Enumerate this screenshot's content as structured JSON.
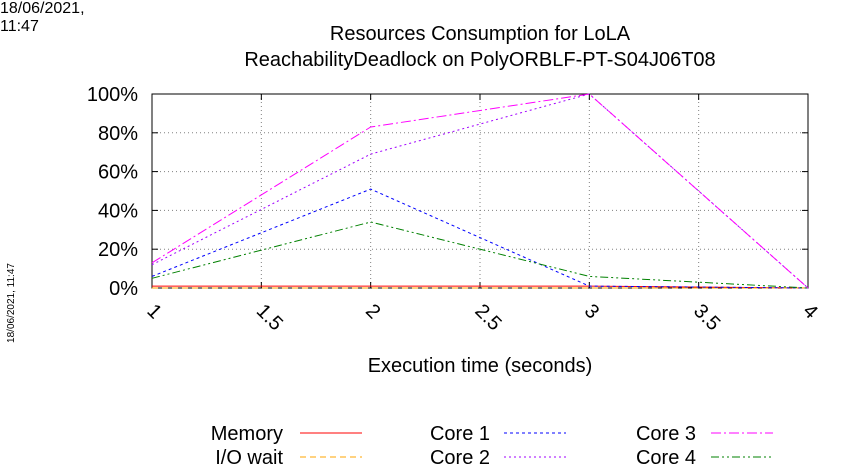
{
  "timestamp": "18/06/2021, 11:47",
  "chart_data": {
    "type": "line",
    "title": "Resources Consumption for LoLA",
    "subtitle": "ReachabilityDeadlock on PolyORBLF-PT-S04J06T08",
    "xlabel": "Execution time (seconds)",
    "ylabel": "",
    "xlim": [
      1,
      4
    ],
    "ylim": [
      0,
      100
    ],
    "x_ticks": [
      "1",
      "1.5",
      "2",
      "2.5",
      "3",
      "3.5",
      "4"
    ],
    "y_ticks": [
      "0%",
      "20%",
      "40%",
      "60%",
      "80%",
      "100%"
    ],
    "grid": true,
    "legend_position": "bottom",
    "x": [
      1,
      2,
      3,
      4
    ],
    "series": [
      {
        "name": "Memory",
        "color": "#ff0000",
        "dash": "solid",
        "values": [
          1,
          1,
          1,
          0
        ]
      },
      {
        "name": "I/O wait",
        "color": "#ffa500",
        "dash": "dashed",
        "values": [
          0,
          0,
          0,
          0
        ]
      },
      {
        "name": "Core 1",
        "color": "#0000ff",
        "dash": "dotted-dash",
        "values": [
          6,
          51,
          1,
          0
        ]
      },
      {
        "name": "Core 2",
        "color": "#a000ff",
        "dash": "dotted",
        "values": [
          12,
          69,
          100,
          0
        ]
      },
      {
        "name": "Core 3",
        "color": "#ff00ff",
        "dash": "dash-dot",
        "values": [
          13,
          83,
          100,
          0
        ]
      },
      {
        "name": "Core 4",
        "color": "#008000",
        "dash": "dash-dot-dot",
        "values": [
          5,
          34,
          6,
          0
        ]
      }
    ]
  }
}
